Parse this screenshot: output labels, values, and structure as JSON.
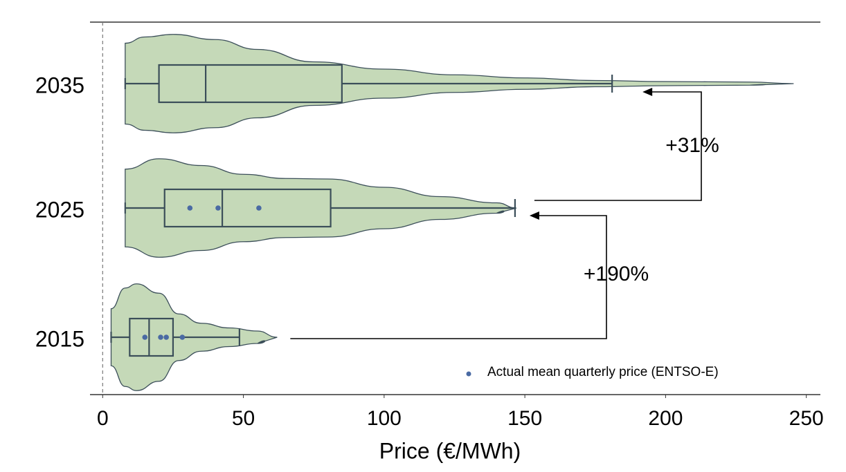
{
  "chart_data": {
    "type": "violin",
    "xlabel": "Price (€/MWh)",
    "xlim": [
      -4.5,
      255
    ],
    "xticks": [
      0,
      50,
      100,
      150,
      200,
      250
    ],
    "categories": [
      "2035",
      "2025",
      "2015"
    ],
    "fill_color": "#c5d9b8",
    "edge_color": "#3b4e59",
    "point_color": "#4a6aa3",
    "groups": [
      {
        "min": 8,
        "q1": 20,
        "median": 36.6,
        "q3": 85,
        "max": 181,
        "violin_x": [
          8,
          15,
          25,
          40,
          55,
          75,
          100,
          125,
          150,
          175,
          200,
          230,
          245.5
        ],
        "violin_width": [
          0.78,
          0.9,
          0.95,
          0.85,
          0.66,
          0.42,
          0.28,
          0.17,
          0.11,
          0.06,
          0.04,
          0.03,
          0
        ],
        "points": []
      },
      {
        "min": 8,
        "q1": 22,
        "median": 42.5,
        "q3": 81,
        "max": 146.5,
        "violin_x": [
          8,
          20,
          35,
          50,
          65,
          80,
          100,
          120,
          140,
          147
        ],
        "violin_width": [
          0.75,
          0.95,
          0.82,
          0.65,
          0.57,
          0.56,
          0.4,
          0.22,
          0.1,
          0
        ],
        "points": [
          31,
          41,
          55.5
        ]
      },
      {
        "min": 3,
        "q1": 9.6,
        "median": 16.5,
        "q3": 25,
        "max": 48.6,
        "violin_x": [
          3,
          8,
          12,
          20,
          27,
          35,
          45,
          55,
          62
        ],
        "violin_width": [
          0.55,
          0.95,
          1.03,
          0.85,
          0.45,
          0.27,
          0.18,
          0.12,
          0
        ],
        "points": [
          15,
          20.6,
          22.6,
          28.3
        ]
      }
    ],
    "annotations": [
      "+31%",
      "+190%"
    ],
    "legend": {
      "label": "Actual mean quarterly price (ENTSO-E)",
      "corner": "lower right"
    }
  }
}
